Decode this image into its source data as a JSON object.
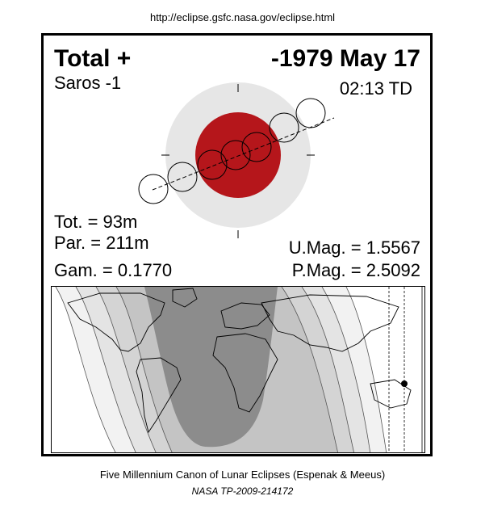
{
  "source_url": "http://eclipse.gsfc.nasa.gov/eclipse.html",
  "eclipse": {
    "type_label": "Total  +",
    "date_label": "-1979 May 17",
    "saros_label": "Saros  -1",
    "time_label": "02:13 TD",
    "tot_label": "Tot. =  93m",
    "par_label": "Par. = 211m",
    "gam_label": "Gam. = 0.1770",
    "umag_label": "U.Mag. = 1.5567",
    "pmag_label": "P.Mag. = 2.5092"
  },
  "colors": {
    "umbra": "#b5161b",
    "penumbra": "#e6e6e6",
    "night_dark": "#8c8c8c",
    "night_mid": "#b4b4b4",
    "night_light": "#d2d2d2",
    "night_faint": "#ebebeb"
  },
  "credits": {
    "line1": "Five Millennium Canon of Lunar Eclipses (Espenak & Meeus)",
    "line2": "NASA TP-2009-214172"
  }
}
